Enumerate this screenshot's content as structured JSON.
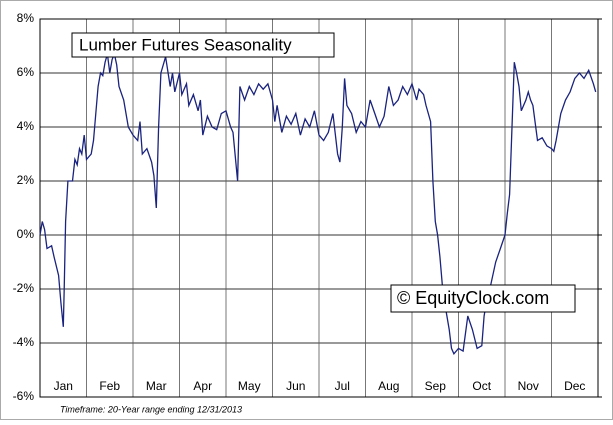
{
  "chart_data": {
    "type": "line",
    "title": "Lumber Futures Seasonality",
    "watermark": "© EquityClock.com",
    "footnote": "Timeframe: 20-Year range ending 12/31/2013",
    "x": [
      0,
      0.05,
      0.1,
      0.15,
      0.25,
      0.3,
      0.4,
      0.45,
      0.5,
      0.52,
      0.55,
      0.6,
      0.7,
      0.75,
      0.8,
      0.85,
      0.9,
      0.95,
      1.0,
      1.1,
      1.15,
      1.2,
      1.25,
      1.3,
      1.35,
      1.4,
      1.45,
      1.5,
      1.55,
      1.6,
      1.65,
      1.7,
      1.8,
      1.9,
      2.0,
      2.1,
      2.15,
      2.2,
      2.3,
      2.4,
      2.45,
      2.5,
      2.55,
      2.6,
      2.7,
      2.8,
      2.85,
      2.9,
      3.0,
      3.05,
      3.15,
      3.2,
      3.3,
      3.4,
      3.45,
      3.5,
      3.6,
      3.7,
      3.8,
      3.9,
      4.0,
      4.1,
      4.15,
      4.25,
      4.3,
      4.4,
      4.5,
      4.6,
      4.7,
      4.8,
      4.9,
      5.0,
      5.05,
      5.1,
      5.2,
      5.3,
      5.4,
      5.5,
      5.6,
      5.7,
      5.8,
      5.9,
      6.0,
      6.1,
      6.2,
      6.3,
      6.4,
      6.45,
      6.5,
      6.55,
      6.6,
      6.7,
      6.8,
      6.9,
      7.0,
      7.1,
      7.2,
      7.3,
      7.4,
      7.5,
      7.6,
      7.7,
      7.8,
      7.9,
      8.0,
      8.1,
      8.15,
      8.25,
      8.3,
      8.4,
      8.45,
      8.5,
      8.55,
      8.6,
      8.65,
      8.7,
      8.8,
      8.85,
      8.9,
      9.0,
      9.1,
      9.2,
      9.3,
      9.4,
      9.5,
      9.55,
      9.6,
      9.7,
      9.8,
      9.9,
      10.0,
      10.05,
      10.1,
      10.15,
      10.2,
      10.25,
      10.3,
      10.35,
      10.45,
      10.5,
      10.55,
      10.6,
      10.7,
      10.8,
      10.9,
      11.0,
      11.05,
      11.1,
      11.2,
      11.3,
      11.4,
      11.5,
      11.6,
      11.7,
      11.8,
      11.9,
      11.95
    ],
    "series": [
      {
        "color": "#1a237e",
        "values": [
          0,
          0.5,
          0.2,
          -0.5,
          -0.4,
          -0.8,
          -1.5,
          -2.5,
          -3.4,
          -2.0,
          0.5,
          2.0,
          2.0,
          2.8,
          2.6,
          3.2,
          3.0,
          3.7,
          2.8,
          3.0,
          3.5,
          4.5,
          5.5,
          6.0,
          5.9,
          6.4,
          6.7,
          6.0,
          6.5,
          6.7,
          6.3,
          5.5,
          5.0,
          4.0,
          3.7,
          3.5,
          4.2,
          3.0,
          3.2,
          2.7,
          2.2,
          1.0,
          4.0,
          6.0,
          6.6,
          5.5,
          6.0,
          5.3,
          6.0,
          5.2,
          5.6,
          4.8,
          5.2,
          4.6,
          5.0,
          3.7,
          4.4,
          4.0,
          3.9,
          4.5,
          4.6,
          4.0,
          3.8,
          2.0,
          5.5,
          5.0,
          5.5,
          5.2,
          5.6,
          5.4,
          5.6,
          5.0,
          4.2,
          4.8,
          3.8,
          4.4,
          4.1,
          4.5,
          3.7,
          4.3,
          4.0,
          4.6,
          3.7,
          3.5,
          3.8,
          4.5,
          3.0,
          2.7,
          4.0,
          5.8,
          4.8,
          4.5,
          3.8,
          4.2,
          4.0,
          5.0,
          4.5,
          4.0,
          4.4,
          5.5,
          4.8,
          5.0,
          5.5,
          5.2,
          5.6,
          5.0,
          5.4,
          5.2,
          4.8,
          4.2,
          2.0,
          0.5,
          0.0,
          -0.8,
          -1.8,
          -2.5,
          -3.5,
          -4.2,
          -4.4,
          -4.2,
          -4.3,
          -3.0,
          -3.5,
          -4.2,
          -4.1,
          -3.0,
          -2.5,
          -1.8,
          -1.0,
          -0.5,
          0.0,
          0.8,
          1.5,
          4.0,
          6.4,
          6.0,
          5.5,
          4.6,
          5.0,
          5.3,
          5.0,
          4.8,
          3.5,
          3.6,
          3.3,
          3.2,
          3.1,
          3.5,
          4.5,
          5.0,
          5.3,
          5.8,
          6.0,
          5.8,
          6.1,
          5.6,
          5.3
        ]
      }
    ],
    "xlim": [
      0,
      12
    ],
    "xticks": [
      {
        "value": 0.5,
        "label": "Jan"
      },
      {
        "value": 1.5,
        "label": "Feb"
      },
      {
        "value": 2.5,
        "label": "Mar"
      },
      {
        "value": 3.5,
        "label": "Apr"
      },
      {
        "value": 4.5,
        "label": "May"
      },
      {
        "value": 5.5,
        "label": "Jun"
      },
      {
        "value": 6.5,
        "label": "Jul"
      },
      {
        "value": 7.5,
        "label": "Aug"
      },
      {
        "value": 8.5,
        "label": "Sep"
      },
      {
        "value": 9.5,
        "label": "Oct"
      },
      {
        "value": 10.5,
        "label": "Nov"
      },
      {
        "value": 11.5,
        "label": "Dec"
      }
    ],
    "ylim": [
      -6,
      8
    ],
    "yticks": [
      {
        "value": -6,
        "label": "-6%"
      },
      {
        "value": -4,
        "label": "-4%"
      },
      {
        "value": -2,
        "label": "-2%"
      },
      {
        "value": 0,
        "label": "0%"
      },
      {
        "value": 2,
        "label": "2%"
      },
      {
        "value": 4,
        "label": "4%"
      },
      {
        "value": 6,
        "label": "6%"
      },
      {
        "value": 8,
        "label": "8%"
      }
    ],
    "grid": true
  }
}
